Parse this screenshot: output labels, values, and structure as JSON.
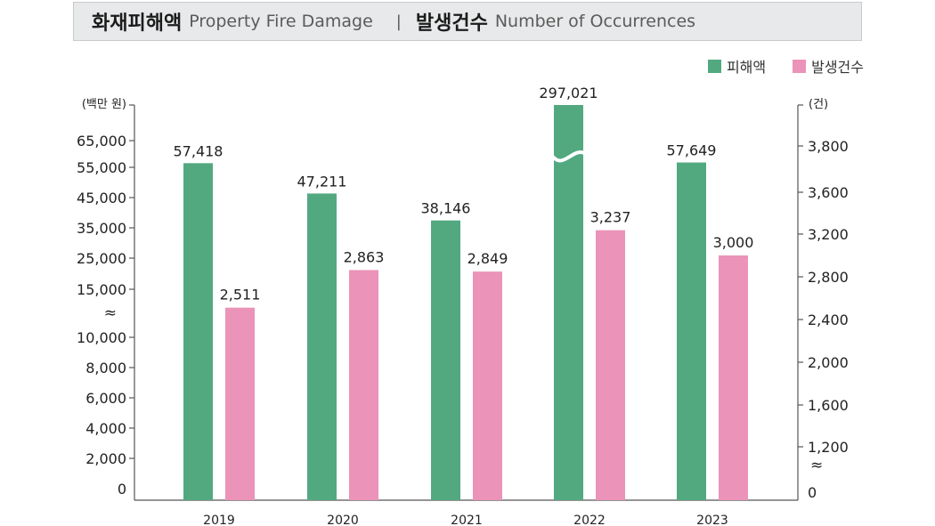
{
  "title": {
    "damage_ko": "화재피해액",
    "damage_en": "Property Fire Damage",
    "separator": "|",
    "count_ko": "발생건수",
    "count_en": "Number of Occurrences"
  },
  "colors": {
    "damage": "#52a980",
    "count": "#eb93b8"
  },
  "chart_data": {
    "type": "bar",
    "categories": [
      "2019",
      "2020",
      "2021",
      "2022",
      "2023"
    ],
    "series": [
      {
        "name": "피해액",
        "axis": "left",
        "values": [
          57418,
          47211,
          38146,
          297021,
          57649
        ],
        "labels": [
          "57,418",
          "47,211",
          "38,146",
          "297,021",
          "57,649"
        ],
        "color": "#52a980"
      },
      {
        "name": "발생건수",
        "axis": "right",
        "values": [
          2511,
          2863,
          2849,
          3237,
          3000
        ],
        "labels": [
          "2,511",
          "2,863",
          "2,849",
          "3,237",
          "3,000"
        ],
        "color": "#eb93b8"
      }
    ],
    "y_left": {
      "unit": "(백만 원)",
      "ticks": [
        "0",
        "2,000",
        "4,000",
        "6,000",
        "8,000",
        "10,000",
        "≈",
        "15,000",
        "25,000",
        "35,000",
        "45,000",
        "55,000",
        "65,000"
      ],
      "axis_break": true
    },
    "y_right": {
      "unit": "(건)",
      "ticks": [
        "0",
        "≈",
        "1,200",
        "1,600",
        "2,000",
        "2,400",
        "2,800",
        "3,200",
        "3,600",
        "3,800"
      ],
      "axis_break": true
    },
    "bar_break_2022": true,
    "legend_position": "top-right"
  }
}
